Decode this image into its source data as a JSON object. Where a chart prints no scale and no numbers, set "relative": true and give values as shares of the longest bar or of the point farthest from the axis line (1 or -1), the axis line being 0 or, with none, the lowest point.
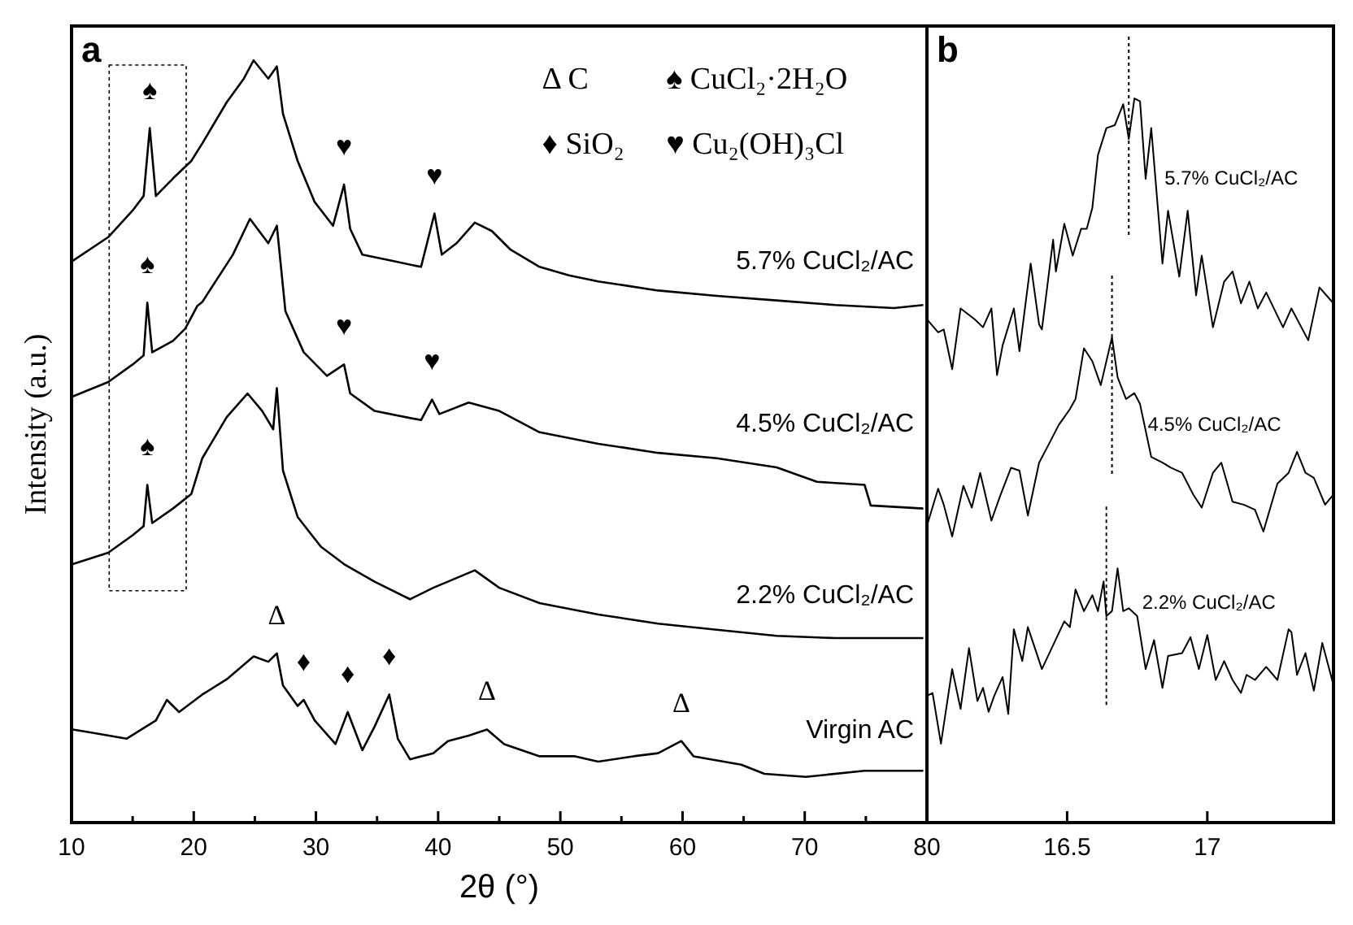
{
  "chart_data": [
    {
      "type": "line",
      "title": "a",
      "xlabel": "2θ (°)",
      "ylabel": "Intensity (a.u.)",
      "relative": true,
      "tick_labels": "x",
      "xlim": [
        10,
        80
      ],
      "xticks": [
        10,
        {
          "value": 15,
          "label": null
        },
        20,
        {
          "value": 25,
          "label": null
        },
        30,
        {
          "value": 35,
          "label": null
        },
        40,
        {
          "value": 45,
          "label": null
        },
        50,
        {
          "value": 55,
          "label": null
        },
        60,
        {
          "value": 65,
          "label": null
        },
        70,
        {
          "value": 75,
          "label": null
        },
        80
      ],
      "series": [
        {
          "name": "5.7% CuCl₂/AC",
          "color": "#000000",
          "x": [
            10.1,
            13.0,
            15.0,
            15.9,
            16.4,
            16.9,
            18.3,
            19.8,
            20.7,
            22.7,
            24.1,
            24.9,
            26.1,
            26.8,
            27.3,
            28.5,
            29.9,
            31.4,
            32.3,
            32.8,
            33.8,
            36.2,
            38.6,
            39.7,
            40.3,
            41.5,
            43.0,
            44.4,
            45.9,
            48.3,
            50.7,
            53.1,
            58.0,
            62.8,
            67.7,
            72.5,
            77.3,
            79.7
          ],
          "values": [
            0.737,
            0.768,
            0.803,
            0.822,
            0.911,
            0.822,
            0.845,
            0.868,
            0.891,
            0.945,
            0.976,
            1.0,
            0.976,
            0.992,
            0.93,
            0.868,
            0.814,
            0.783,
            0.837,
            0.779,
            0.745,
            0.737,
            0.729,
            0.799,
            0.745,
            0.76,
            0.787,
            0.776,
            0.752,
            0.729,
            0.718,
            0.71,
            0.698,
            0.691,
            0.685,
            0.679,
            0.675,
            0.679
          ]
        },
        {
          "name": "4.5% CuCl₂/AC",
          "color": "#000000",
          "x": [
            10.1,
            13.0,
            15.0,
            15.9,
            16.2,
            16.6,
            18.3,
            19.3,
            20.3,
            20.7,
            23.2,
            24.6,
            26.1,
            26.8,
            27.5,
            29.0,
            30.9,
            32.3,
            32.8,
            34.8,
            38.6,
            39.5,
            40.1,
            42.5,
            45.0,
            48.3,
            53.1,
            58.0,
            62.8,
            67.7,
            71.0,
            74.9,
            75.4,
            79.7
          ],
          "values": [
            0.559,
            0.578,
            0.601,
            0.613,
            0.682,
            0.617,
            0.632,
            0.648,
            0.678,
            0.683,
            0.745,
            0.792,
            0.76,
            0.783,
            0.671,
            0.617,
            0.586,
            0.601,
            0.563,
            0.54,
            0.528,
            0.555,
            0.536,
            0.551,
            0.54,
            0.512,
            0.497,
            0.485,
            0.478,
            0.466,
            0.447,
            0.443,
            0.416,
            0.412
          ]
        },
        {
          "name": "2.2% CuCl₂/AC",
          "color": "#000000",
          "x": [
            10.1,
            13.0,
            15.0,
            15.9,
            16.2,
            16.6,
            18.3,
            19.8,
            20.7,
            22.7,
            24.4,
            25.6,
            26.5,
            26.8,
            27.3,
            28.5,
            30.4,
            32.3,
            34.8,
            37.7,
            39.6,
            43.0,
            45.0,
            48.3,
            53.1,
            58.0,
            62.8,
            67.7,
            72.5,
            79.7
          ],
          "values": [
            0.339,
            0.354,
            0.377,
            0.389,
            0.443,
            0.393,
            0.412,
            0.431,
            0.478,
            0.532,
            0.563,
            0.54,
            0.516,
            0.57,
            0.462,
            0.401,
            0.362,
            0.339,
            0.316,
            0.293,
            0.308,
            0.331,
            0.308,
            0.288,
            0.273,
            0.261,
            0.253,
            0.245,
            0.242,
            0.242
          ]
        },
        {
          "name": "Virgin AC",
          "color": "#000000",
          "x": [
            10.1,
            12.0,
            14.5,
            16.9,
            17.8,
            18.8,
            20.7,
            22.7,
            24.9,
            26.1,
            26.8,
            27.3,
            28.5,
            29.0,
            29.9,
            31.6,
            32.6,
            33.8,
            34.8,
            36.0,
            36.7,
            37.7,
            39.6,
            40.8,
            42.5,
            44.0,
            45.4,
            48.3,
            51.2,
            53.1,
            56.0,
            58.0,
            59.9,
            60.9,
            64.8,
            66.7,
            70.1,
            74.9,
            79.7
          ],
          "values": [
            0.122,
            0.117,
            0.11,
            0.134,
            0.161,
            0.145,
            0.168,
            0.188,
            0.218,
            0.211,
            0.222,
            0.18,
            0.153,
            0.161,
            0.134,
            0.103,
            0.145,
            0.095,
            0.126,
            0.168,
            0.11,
            0.083,
            0.091,
            0.107,
            0.114,
            0.122,
            0.103,
            0.087,
            0.087,
            0.08,
            0.087,
            0.091,
            0.107,
            0.087,
            0.076,
            0.064,
            0.06,
            0.068,
            0.068
          ]
        }
      ],
      "annotations": [
        "Δ C",
        "♠ CuCl₂·2H₂O",
        "♦ SiO₂",
        "♥ Cu₂(OH)₃Cl",
        {
          "text": "♠",
          "x": 16.4,
          "y": 0.911
        },
        {
          "text": "♠",
          "x": 16.2,
          "y": 0.682
        },
        {
          "text": "♠",
          "x": 16.2,
          "y": 0.443
        },
        {
          "text": "♥",
          "x": 32.3,
          "y": 0.837
        },
        {
          "text": "♥",
          "x": 39.7,
          "y": 0.799
        },
        {
          "text": "♥",
          "x": 32.3,
          "y": 0.601
        },
        {
          "text": "♥",
          "x": 39.5,
          "y": 0.555
        },
        {
          "text": "Δ",
          "x": 26.8,
          "y": 0.222
        },
        {
          "text": "Δ",
          "x": 44.0,
          "y": 0.122
        },
        {
          "text": "Δ",
          "x": 59.9,
          "y": 0.107
        },
        {
          "text": "♦",
          "x": 29.0,
          "y": 0.161
        },
        {
          "text": "♦",
          "x": 32.6,
          "y": 0.145
        },
        {
          "text": "♦",
          "x": 36.0,
          "y": 0.168
        }
      ]
    },
    {
      "type": "line",
      "title": "b",
      "relative": true,
      "tick_labels": "x",
      "xlim": [
        16.0,
        17.45
      ],
      "xticks": [
        16.5,
        17
      ],
      "series": [
        {
          "name": "5.7% CuCl₂/AC",
          "color": "#000000",
          "x": [
            16.0,
            16.04,
            16.06,
            16.09,
            16.12,
            16.17,
            16.2,
            16.23,
            16.25,
            16.27,
            16.31,
            16.33,
            16.37,
            16.4,
            16.41,
            16.45,
            16.46,
            16.49,
            16.52,
            16.55,
            16.57,
            16.59,
            16.61,
            16.64,
            16.67,
            16.7,
            16.72,
            16.74,
            16.76,
            16.78,
            16.8,
            16.84,
            16.86,
            16.9,
            16.93,
            16.96,
            16.98,
            17.02,
            17.06,
            17.09,
            17.12,
            17.15,
            17.18,
            17.21,
            17.27,
            17.3,
            17.36,
            17.4,
            17.45
          ],
          "values": [
            0.695,
            0.677,
            0.681,
            0.626,
            0.71,
            0.695,
            0.684,
            0.71,
            0.618,
            0.659,
            0.71,
            0.651,
            0.772,
            0.688,
            0.681,
            0.805,
            0.761,
            0.827,
            0.783,
            0.82,
            0.82,
            0.849,
            0.922,
            0.959,
            0.963,
            0.992,
            0.944,
            1.0,
            0.996,
            0.889,
            0.959,
            0.772,
            0.845,
            0.754,
            0.845,
            0.728,
            0.783,
            0.684,
            0.747,
            0.761,
            0.717,
            0.747,
            0.71,
            0.732,
            0.684,
            0.71,
            0.666,
            0.739,
            0.717
          ]
        },
        {
          "name": "4.5% CuCl₂/AC",
          "color": "#000000",
          "x": [
            16.0,
            16.04,
            16.06,
            16.09,
            16.13,
            16.16,
            16.19,
            16.23,
            16.26,
            16.3,
            16.33,
            16.36,
            16.4,
            16.43,
            16.47,
            16.51,
            16.53,
            16.56,
            16.59,
            16.62,
            16.66,
            16.68,
            16.71,
            16.74,
            16.76,
            16.8,
            16.84,
            16.87,
            16.91,
            16.95,
            16.98,
            17.02,
            17.05,
            17.09,
            17.13,
            17.17,
            17.2,
            17.25,
            17.29,
            17.32,
            17.35,
            17.38,
            17.42,
            17.45
          ],
          "values": [
            0.41,
            0.461,
            0.439,
            0.395,
            0.465,
            0.435,
            0.483,
            0.417,
            0.45,
            0.49,
            0.486,
            0.424,
            0.497,
            0.519,
            0.549,
            0.571,
            0.585,
            0.655,
            0.637,
            0.604,
            0.67,
            0.615,
            0.585,
            0.593,
            0.578,
            0.505,
            0.497,
            0.49,
            0.483,
            0.453,
            0.435,
            0.483,
            0.497,
            0.443,
            0.439,
            0.432,
            0.402,
            0.468,
            0.483,
            0.512,
            0.483,
            0.476,
            0.439,
            0.453
          ]
        },
        {
          "name": "2.2% CuCl₂/AC",
          "color": "#000000",
          "x": [
            16.0,
            16.02,
            16.05,
            16.09,
            16.12,
            16.15,
            16.18,
            16.2,
            16.22,
            16.24,
            16.27,
            16.29,
            16.31,
            16.34,
            16.36,
            16.41,
            16.49,
            16.51,
            16.53,
            16.56,
            16.59,
            16.61,
            16.63,
            16.64,
            16.66,
            16.68,
            16.7,
            16.72,
            16.75,
            16.78,
            16.81,
            16.84,
            16.86,
            16.91,
            16.94,
            16.97,
            17.0,
            17.03,
            17.06,
            17.09,
            17.12,
            17.14,
            17.17,
            17.21,
            17.25,
            17.29,
            17.3,
            17.32,
            17.35,
            17.38,
            17.41,
            17.45
          ],
          "values": [
            0.175,
            0.179,
            0.109,
            0.212,
            0.157,
            0.241,
            0.168,
            0.186,
            0.153,
            0.175,
            0.201,
            0.15,
            0.267,
            0.223,
            0.27,
            0.212,
            0.278,
            0.27,
            0.322,
            0.292,
            0.314,
            0.292,
            0.333,
            0.285,
            0.292,
            0.351,
            0.292,
            0.296,
            0.285,
            0.212,
            0.252,
            0.186,
            0.23,
            0.234,
            0.256,
            0.212,
            0.259,
            0.197,
            0.223,
            0.197,
            0.179,
            0.204,
            0.197,
            0.215,
            0.197,
            0.267,
            0.263,
            0.204,
            0.234,
            0.182,
            0.248,
            0.19
          ]
        }
      ],
      "ref_lines": [
        {
          "axis": "x",
          "value": 16.72,
          "line_style": "dotted"
        },
        {
          "axis": "x",
          "value": 16.66,
          "line_style": "dotted"
        },
        {
          "axis": "x",
          "value": 16.64,
          "line_style": "dotted"
        }
      ]
    }
  ]
}
